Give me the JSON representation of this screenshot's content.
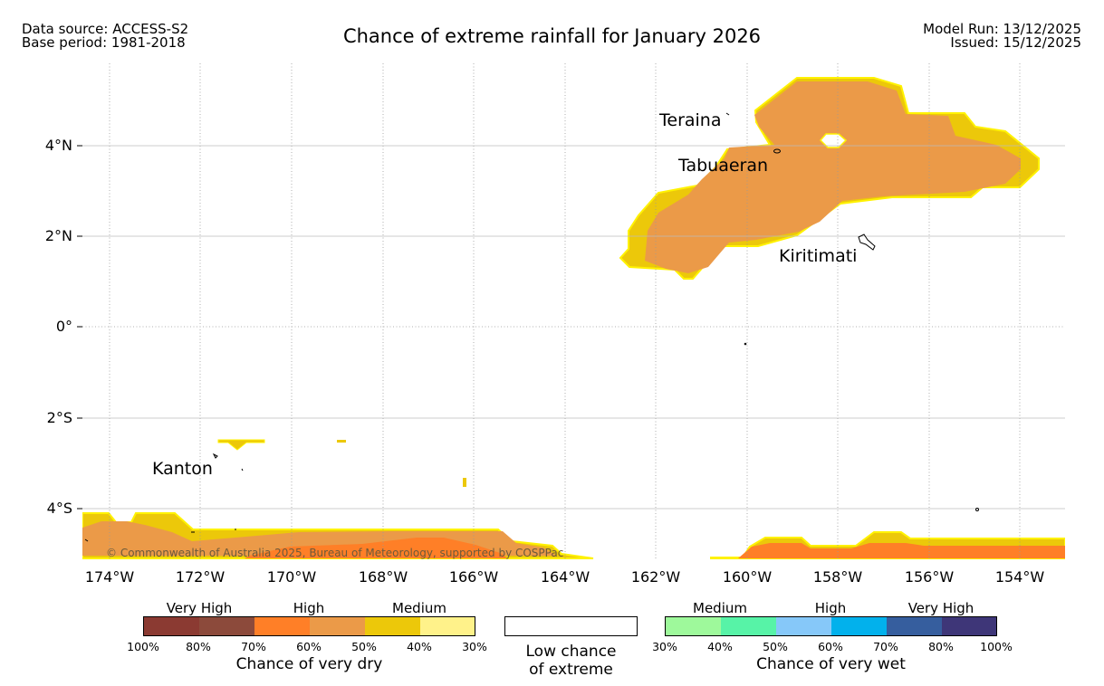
{
  "header": {
    "source_line": "Data source: ACCESS-S2",
    "base_line": "Base period: 1981-2018",
    "title": "Chance of extreme rainfall for January 2026",
    "model_run": "Model Run: 13/12/2025",
    "issued": "Issued: 15/12/2025"
  },
  "map": {
    "lon_labels": [
      "174°W",
      "172°W",
      "170°W",
      "168°W",
      "166°W",
      "164°W",
      "162°W",
      "160°W",
      "158°W",
      "156°W",
      "154°W"
    ],
    "lat_labels": [
      "4°N",
      "2°N",
      "0°",
      "2°S",
      "4°S"
    ],
    "places": [
      "Teraina",
      "Tabuaeran",
      "Kiritimati",
      "Kanton"
    ],
    "copyright": "© Commonwealth of Australia 2025, Bureau of Meteorology, supported by COSPPac"
  },
  "legend": {
    "dry": {
      "groups": [
        "Very High",
        "High",
        "Medium"
      ],
      "ticks": [
        "100%",
        "80%",
        "70%",
        "60%",
        "50%",
        "40%",
        "30%"
      ],
      "colors": [
        "#8b3a32",
        "#8c4a3b",
        "#ff7f27",
        "#eb9a48",
        "#ecc80a",
        "#fff28a"
      ],
      "title": "Chance of very dry"
    },
    "neutral": {
      "line1": "Low chance",
      "line2": "of extreme"
    },
    "wet": {
      "groups": [
        "Medium",
        "High",
        "Very High"
      ],
      "ticks": [
        "30%",
        "40%",
        "50%",
        "60%",
        "70%",
        "80%",
        "100%"
      ],
      "colors": [
        "#9ef99b",
        "#57f3a7",
        "#86c8f9",
        "#02b1ec",
        "#365e9e",
        "#3e3678"
      ],
      "title": "Chance of very wet"
    }
  }
}
